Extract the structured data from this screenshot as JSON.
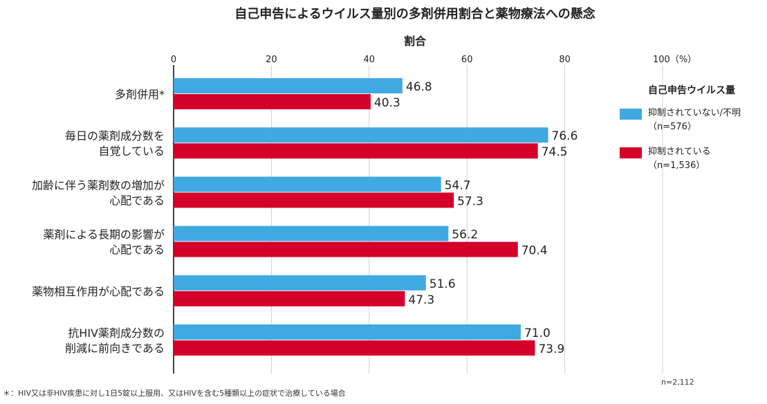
{
  "title": "自己申告によるウイルス量別の多剤併用割合と薬物療法への懸念",
  "chart_data": {
    "type": "bar",
    "orientation": "horizontal",
    "title": "自己申告によるウイルス量別の多剤併用割合と薬物療法への懸念",
    "xlabel": "割合",
    "xlim": [
      0,
      100
    ],
    "x_ticks": [
      "0",
      "20",
      "40",
      "60",
      "80",
      "100（%）"
    ],
    "grid": true,
    "legend_title": "自己申告ウイルス量",
    "legend_position": "right",
    "categories": [
      "多剤併用*",
      "毎日の薬剤成分数を\n自覚している",
      "加齢に伴う薬剤数の増加が\n心配である",
      "薬剤による長期の影響が\n心配である",
      "薬物相互作用が心配である",
      "抗HIV薬剤成分数の\n削減に前向きである"
    ],
    "series": [
      {
        "name": "抑制されていない/不明\n（n=576）",
        "color": "#41a9e1",
        "values": [
          46.8,
          76.6,
          54.7,
          56.2,
          51.6,
          71.0
        ],
        "labels": [
          "46.8",
          "76.6",
          "54.7",
          "56.2",
          "51.6",
          "71.0"
        ]
      },
      {
        "name": "抑制されている\n（n=1,536）",
        "color": "#d4002a",
        "values": [
          40.3,
          74.5,
          57.3,
          70.4,
          47.3,
          73.9
        ],
        "labels": [
          "40.3",
          "74.5",
          "57.3",
          "70.4",
          "47.3",
          "73.9"
        ]
      }
    ]
  },
  "footnote": "＊：HIV又は非HIV疾患に対し1日5錠以上服用、又はHIVを含む5種類以上の症状で治療している場合",
  "sample_size": "n=2,112"
}
